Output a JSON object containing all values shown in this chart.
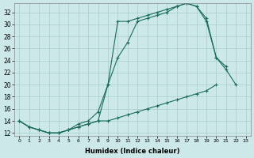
{
  "xlabel": "Humidex (Indice chaleur)",
  "bg_color": "#cce8e8",
  "grid_color": "#aacccc",
  "line_color": "#1a6b5a",
  "xlim": [
    -0.5,
    23.5
  ],
  "ylim": [
    11.5,
    33.5
  ],
  "yticks": [
    12,
    14,
    16,
    18,
    20,
    22,
    24,
    26,
    28,
    30,
    32
  ],
  "xticks": [
    0,
    1,
    2,
    3,
    4,
    5,
    6,
    7,
    8,
    9,
    10,
    11,
    12,
    13,
    14,
    15,
    16,
    17,
    18,
    19,
    20,
    21,
    22,
    23
  ],
  "line1_x": [
    0,
    1,
    2,
    3,
    4,
    5,
    6,
    7,
    8,
    9,
    10,
    11,
    12,
    13,
    14,
    15,
    16,
    17,
    18,
    19,
    20,
    21,
    22,
    23
  ],
  "line1_y": [
    14,
    13,
    12.5,
    12,
    12,
    12.5,
    13,
    13.5,
    14,
    14,
    14.5,
    15,
    15.5,
    16,
    16.5,
    17,
    17.5,
    18,
    18.5,
    19,
    20,
    null,
    null,
    null
  ],
  "line2_x": [
    0,
    1,
    2,
    3,
    4,
    5,
    6,
    7,
    8,
    9,
    10,
    11,
    12,
    13,
    14,
    15,
    16,
    17,
    18,
    19,
    20,
    21
  ],
  "line2_y": [
    14,
    13,
    12.5,
    12,
    12,
    12.5,
    13,
    13.5,
    14,
    20,
    24.5,
    27,
    30.5,
    31,
    31.5,
    32,
    33,
    33.5,
    33,
    31,
    24.5,
    23
  ],
  "line3_x": [
    0,
    1,
    2,
    3,
    4,
    5,
    6,
    7,
    8,
    9,
    10,
    11,
    12,
    13,
    14,
    15,
    16,
    17,
    18,
    19,
    20,
    21,
    22
  ],
  "line3_y": [
    14,
    13,
    12.5,
    12,
    12,
    12.5,
    13.5,
    14,
    15.5,
    20,
    30.5,
    30.5,
    31,
    31.5,
    32,
    32.5,
    33,
    33.5,
    33,
    30.5,
    24.5,
    22.5,
    20
  ]
}
